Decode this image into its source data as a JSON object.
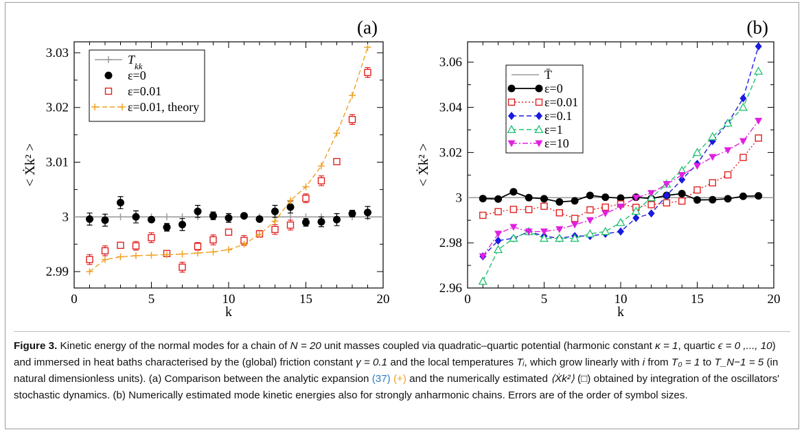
{
  "chart_data": [
    {
      "type": "scatter",
      "panel_label": "(a)",
      "xlabel": "k",
      "ylabel": "< Ẋk² >",
      "xlim": [
        0,
        20
      ],
      "ylim": [
        2.987,
        3.032
      ],
      "xticks": [
        0,
        5,
        10,
        15,
        20
      ],
      "yticks": [
        2.99,
        3,
        3.01,
        3.02,
        3.03
      ],
      "ytick_labels": [
        "2.99",
        "3",
        "3.01",
        "3.02",
        "3.03"
      ],
      "grid": false,
      "legend_position": "top-left",
      "series": [
        {
          "name": "T_kk",
          "style": "hline",
          "color": "#9a9a9a",
          "marker": "plus",
          "x": [
            1,
            2,
            3,
            4,
            5,
            6,
            7,
            8,
            9,
            10,
            11,
            12,
            13,
            14,
            15,
            16,
            17,
            18,
            19
          ],
          "y": [
            3,
            3,
            3,
            3,
            3,
            3,
            3,
            3,
            3,
            3,
            3,
            3,
            3,
            3,
            3,
            3,
            3,
            3,
            3
          ]
        },
        {
          "name": "ε=0",
          "style": "markers",
          "color": "#000000",
          "marker": "circle",
          "x": [
            1,
            2,
            3,
            4,
            5,
            6,
            7,
            8,
            9,
            10,
            11,
            12,
            13,
            14,
            15,
            16,
            17,
            18,
            19
          ],
          "y": [
            2.9996,
            2.9994,
            3.0026,
            3.0,
            2.9995,
            2.9981,
            2.9986,
            3.001,
            3.0002,
            2.9998,
            3.0002,
            2.9996,
            3.001,
            3.0018,
            2.999,
            2.9991,
            2.9995,
            3.0006,
            3.0008
          ],
          "err": [
            0.0011,
            0.0011,
            0.0011,
            0.0011,
            0.0004,
            0.0007,
            0.0011,
            0.0011,
            0.0007,
            0.0008,
            0.0003,
            0.0004,
            0.0011,
            0.0011,
            0.0007,
            0.0009,
            0.0011,
            0.0006,
            0.0011
          ]
        },
        {
          "name": "ε=0.01",
          "style": "markers",
          "color": "#e02020",
          "marker": "square-open",
          "x": [
            1,
            2,
            3,
            4,
            5,
            6,
            7,
            8,
            9,
            10,
            11,
            12,
            13,
            14,
            15,
            16,
            17,
            18,
            19
          ],
          "y": [
            2.9922,
            2.9938,
            2.9948,
            2.9947,
            2.9962,
            2.9933,
            2.9908,
            2.9946,
            2.9958,
            2.9972,
            2.9957,
            2.9969,
            2.9977,
            2.9985,
            3.0034,
            3.0066,
            3.0101,
            3.0178,
            3.0264
          ],
          "err": [
            0.0009,
            0.0009,
            0.0004,
            0.0008,
            0.0009,
            0.0004,
            0.0009,
            0.0007,
            0.0009,
            0.0003,
            0.0009,
            0.0006,
            0.0009,
            0.0009,
            0.0008,
            0.0009,
            0.0005,
            0.0009,
            0.0009
          ]
        },
        {
          "name": "ε=0.01, theory",
          "style": "dashed",
          "color": "#f0a020",
          "marker": "plus",
          "x": [
            1,
            2,
            3,
            4,
            5,
            6,
            7,
            8,
            9,
            10,
            11,
            12,
            13,
            14,
            15,
            16,
            17,
            18,
            19
          ],
          "y": [
            2.99,
            2.9922,
            2.9927,
            2.9929,
            2.993,
            2.9931,
            2.9932,
            2.9934,
            2.9936,
            2.994,
            2.995,
            2.9968,
            2.9992,
            3.003,
            3.0055,
            3.0093,
            3.0153,
            3.0222,
            3.031
          ]
        }
      ]
    },
    {
      "type": "line",
      "panel_label": "(b)",
      "xlabel": "k",
      "ylabel": "< Ẋk² >",
      "xlim": [
        0,
        20
      ],
      "ylim": [
        2.96,
        3.069
      ],
      "xticks": [
        0,
        5,
        10,
        15,
        20
      ],
      "yticks": [
        2.96,
        2.98,
        3,
        3.02,
        3.04,
        3.06
      ],
      "ytick_labels": [
        "2.96",
        "2.98",
        "3",
        "3.02",
        "3.04",
        "3.06"
      ],
      "grid": false,
      "legend_position": "top-left",
      "series": [
        {
          "name": "T̄",
          "style": "hline",
          "color": "#9a9a9a",
          "marker": "none",
          "x": [
            0,
            20
          ],
          "y": [
            3,
            3
          ]
        },
        {
          "name": "ε=0",
          "style": "solid",
          "color": "#000000",
          "marker": "circle",
          "x": [
            1,
            2,
            3,
            4,
            5,
            6,
            7,
            8,
            9,
            10,
            11,
            12,
            13,
            14,
            15,
            16,
            17,
            18,
            19
          ],
          "y": [
            2.9996,
            2.9994,
            3.0026,
            3.0,
            2.9995,
            2.9981,
            2.9986,
            3.001,
            3.0002,
            2.9998,
            3.0002,
            2.9996,
            3.001,
            3.0018,
            2.999,
            2.9991,
            2.9995,
            3.0006,
            3.0008
          ]
        },
        {
          "name": "ε=0.01",
          "style": "dotted",
          "color": "#e02020",
          "marker": "square-open",
          "x": [
            1,
            2,
            3,
            4,
            5,
            6,
            7,
            8,
            9,
            10,
            11,
            12,
            13,
            14,
            15,
            16,
            17,
            18,
            19
          ],
          "y": [
            2.9922,
            2.9938,
            2.9948,
            2.9947,
            2.9962,
            2.9933,
            2.9908,
            2.9946,
            2.9958,
            2.9972,
            2.9957,
            2.9969,
            2.9977,
            2.9985,
            3.0034,
            3.0066,
            3.0101,
            3.0178,
            3.0264
          ]
        },
        {
          "name": "ε=0.1",
          "style": "dashed",
          "color": "#1a1ae0",
          "marker": "diamond",
          "x": [
            1,
            2,
            3,
            4,
            5,
            6,
            7,
            8,
            9,
            10,
            11,
            12,
            13,
            14,
            15,
            16,
            17,
            18,
            19
          ],
          "y": [
            2.974,
            2.981,
            2.982,
            2.985,
            2.983,
            2.982,
            2.983,
            2.983,
            2.984,
            2.985,
            2.991,
            2.993,
            3.001,
            3.008,
            3.015,
            3.025,
            3.033,
            3.044,
            3.067
          ]
        },
        {
          "name": "ε=1",
          "style": "dashed",
          "color": "#20c070",
          "marker": "triangle-open",
          "x": [
            1,
            2,
            3,
            4,
            5,
            6,
            7,
            8,
            9,
            10,
            11,
            12,
            13,
            14,
            15,
            16,
            17,
            18,
            19
          ],
          "y": [
            2.963,
            2.977,
            2.982,
            2.985,
            2.982,
            2.982,
            2.982,
            2.984,
            2.985,
            2.989,
            2.994,
            3.0,
            3.006,
            3.012,
            3.02,
            3.027,
            3.033,
            3.04,
            3.056
          ]
        },
        {
          "name": "ε=10",
          "style": "dashdot",
          "color": "#e020e0",
          "marker": "triangle-down",
          "x": [
            1,
            2,
            3,
            4,
            5,
            6,
            7,
            8,
            9,
            10,
            11,
            12,
            13,
            14,
            15,
            16,
            17,
            18,
            19
          ],
          "y": [
            2.974,
            2.984,
            2.987,
            2.985,
            2.985,
            2.986,
            2.988,
            2.99,
            2.993,
            2.996,
            3.0,
            3.002,
            3.006,
            3.01,
            3.014,
            3.018,
            3.021,
            3.025,
            3.034
          ]
        }
      ]
    }
  ],
  "caption": {
    "label": "Figure 3.",
    "text1": " Kinetic energy of the normal modes for a chain of ",
    "math1": "N = 20",
    "text2": " unit masses coupled via quadratic–quartic potential (harmonic constant ",
    "math2": "κ = 1",
    "text3": ", quartic ",
    "math3": "ϵ = 0 ,..., 10",
    "text4": ") and immersed in heat baths characterised by the (global) friction constant ",
    "math4": "γ = 0.1",
    "text5": " and the local temperatures ",
    "math5": "Tᵢ",
    "text6": ", which grow linearly with ",
    "math6": "i",
    "text7": " from ",
    "math7": "T₀ = 1",
    "text8": " to ",
    "math8": "T_N−1 = 5",
    "text9": " (in natural dimensionless units). (a) Comparison between the analytic expansion ",
    "ref": "(37)",
    "text10": " ",
    "plus_symbol": "(+)",
    "text11": " and the numerically estimated ",
    "math9": "⟨Ẋk²⟩",
    "square_symbol": " (□)",
    "text12": " obtained by integration of the oscillators' stochastic dynamics. (b) Numerically estimated mode kinetic energies also for strongly anharmonic chains. Errors are of the order of symbol sizes."
  }
}
